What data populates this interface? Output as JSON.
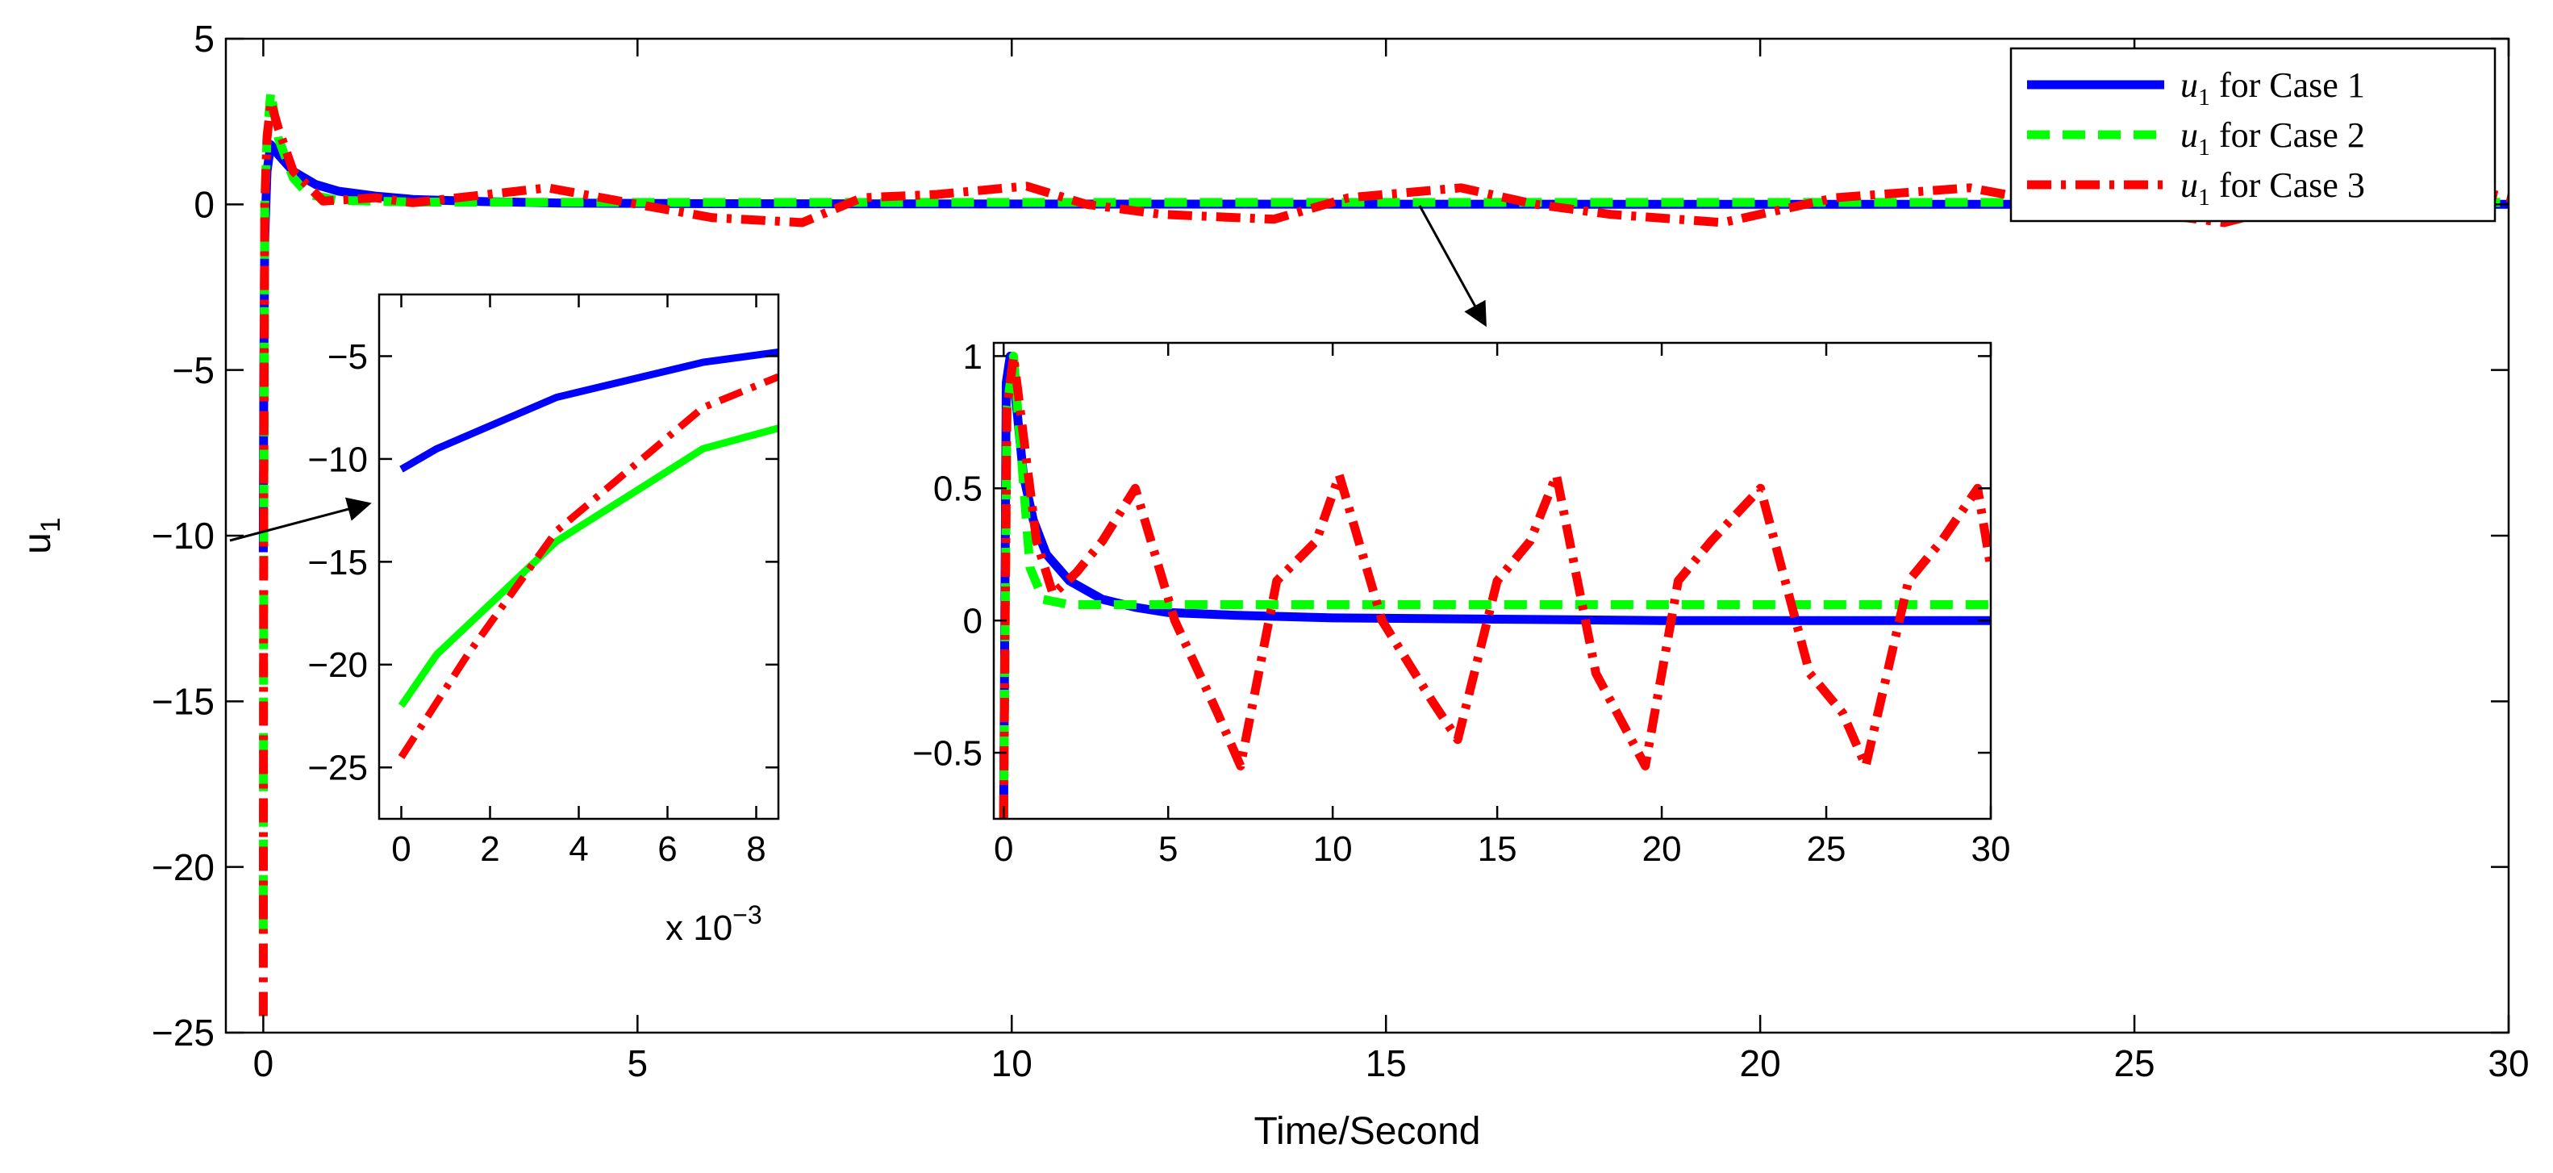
{
  "chart_data": [
    {
      "id": "main",
      "type": "line",
      "title": "",
      "xlabel": "Time/Second",
      "ylabel": "u",
      "ylabel_sub": "1",
      "xlim": [
        -0.5,
        30
      ],
      "ylim": [
        -25,
        5
      ],
      "xticks": [
        0,
        5,
        10,
        15,
        20,
        25,
        30
      ],
      "yticks": [
        -25,
        -20,
        -15,
        -10,
        -5,
        0,
        5
      ],
      "xtick_labels": [
        "0",
        "5",
        "10",
        "15",
        "20",
        "25",
        "30"
      ],
      "ytick_labels": [
        "−25",
        "−20",
        "−15",
        "−10",
        "−5",
        "0",
        "5"
      ],
      "legend": {
        "placement": "top-right",
        "entries": [
          {
            "var": "u",
            "sub": "1",
            "text": " for Case 1"
          },
          {
            "var": "u",
            "sub": "1",
            "text": " for Case 2"
          },
          {
            "var": "u",
            "sub": "1",
            "text": " for Case 3"
          }
        ]
      },
      "series": [
        {
          "name": "u1 for Case 1",
          "color": "#0000ff",
          "dash": "solid",
          "x": [
            0,
            0.001,
            0.004,
            0.008,
            0.02,
            0.05,
            0.1,
            0.2,
            0.4,
            0.7,
            1,
            1.5,
            2,
            3,
            4,
            6,
            10,
            15,
            20,
            25,
            30
          ],
          "y": [
            -10.5,
            -9.5,
            -7,
            -5,
            -1,
            1,
            1.8,
            1.5,
            1.0,
            0.6,
            0.4,
            0.25,
            0.15,
            0.08,
            0.04,
            0.02,
            0.01,
            0.005,
            0.0,
            0.0,
            0.0
          ]
        },
        {
          "name": "u1 for Case 2",
          "color": "#00ff00",
          "dash": "dashed",
          "x": [
            0,
            0.001,
            0.004,
            0.008,
            0.02,
            0.05,
            0.1,
            0.2,
            0.4,
            0.6,
            1,
            2,
            5,
            10,
            15,
            20,
            25,
            30
          ],
          "y": [
            -22,
            -20,
            -14,
            -9,
            0,
            2,
            3.4,
            2.0,
            0.8,
            0.3,
            0.12,
            0.07,
            0.06,
            0.06,
            0.06,
            0.06,
            0.06,
            0.06
          ]
        },
        {
          "name": "u1 for Case 3",
          "color": "#ff0000",
          "dash": "dashdot",
          "x": [
            0,
            0.001,
            0.004,
            0.008,
            0.02,
            0.05,
            0.1,
            0.2,
            0.4,
            0.8,
            1.5,
            2,
            3,
            3.8,
            5,
            6,
            7.2,
            8,
            9,
            10.2,
            11,
            12,
            13.5,
            14.5,
            16,
            17,
            18,
            19.5,
            21,
            22.8,
            24,
            25.5,
            26.2,
            27.5,
            29,
            29.8,
            30
          ],
          "y": [
            -24.5,
            -20,
            -12,
            -8,
            0,
            2,
            3.1,
            2.3,
            1.0,
            0.1,
            0.2,
            0.05,
            0.3,
            0.5,
            0.0,
            -0.4,
            -0.55,
            0.2,
            0.3,
            0.55,
            0.0,
            -0.3,
            -0.45,
            0.2,
            0.5,
            0.0,
            -0.3,
            -0.55,
            0.2,
            0.5,
            0.0,
            -0.35,
            -0.55,
            0.2,
            0.5,
            0.3,
            0.2
          ]
        }
      ]
    },
    {
      "id": "inset-left",
      "type": "line",
      "xlim": [
        -0.5,
        8.5
      ],
      "ylim": [
        -27.5,
        -2
      ],
      "xticks": [
        0,
        2,
        4,
        6,
        8
      ],
      "yticks": [
        -25,
        -20,
        -15,
        -10,
        -5
      ],
      "xtick_labels": [
        "0",
        "2",
        "4",
        "6",
        "8"
      ],
      "ytick_labels": [
        "−25",
        "−20",
        "−15",
        "−10",
        "−5"
      ],
      "x_multiplier_label": "x 10",
      "x_multiplier_exp": "−3",
      "series": [
        {
          "name": "Case 1",
          "color": "#0000ff",
          "dash": "solid",
          "x": [
            0,
            0.8,
            3.5,
            6.8,
            8.5
          ],
          "y": [
            -10.5,
            -9.5,
            -7,
            -5.3,
            -4.8
          ]
        },
        {
          "name": "Case 2",
          "color": "#00ff00",
          "dash": "solid",
          "x": [
            0,
            0.8,
            3.5,
            6.8,
            8.5
          ],
          "y": [
            -22,
            -19.5,
            -14,
            -9.5,
            -8.5
          ]
        },
        {
          "name": "Case 3",
          "color": "#ff0000",
          "dash": "dashdot",
          "x": [
            0,
            1.5,
            3.5,
            6.8,
            8.5
          ],
          "y": [
            -24.5,
            -19.5,
            -13.5,
            -7.5,
            -6
          ]
        }
      ]
    },
    {
      "id": "inset-right",
      "type": "line",
      "xlim": [
        -0.3,
        30
      ],
      "ylim": [
        -0.75,
        1.05
      ],
      "xticks": [
        0,
        5,
        10,
        15,
        20,
        25,
        30
      ],
      "yticks": [
        -0.5,
        0,
        0.5,
        1
      ],
      "xtick_labels": [
        "0",
        "5",
        "10",
        "15",
        "20",
        "25",
        "30"
      ],
      "ytick_labels": [
        "−0.5",
        "0",
        "0.5",
        "1"
      ],
      "series": [
        {
          "name": "Case 1",
          "color": "#0000ff",
          "dash": "solid",
          "x": [
            0,
            0.08,
            0.2,
            0.4,
            0.6,
            0.9,
            1.3,
            2,
            3,
            4,
            5,
            7,
            10,
            15,
            20,
            25,
            30
          ],
          "y": [
            -0.75,
            0.9,
            1.0,
            0.8,
            0.55,
            0.38,
            0.25,
            0.15,
            0.08,
            0.05,
            0.03,
            0.02,
            0.01,
            0.005,
            0.0,
            0.0,
            0.0
          ]
        },
        {
          "name": "Case 2",
          "color": "#00ff00",
          "dash": "dashed",
          "x": [
            0,
            0.1,
            0.3,
            0.55,
            0.8,
            1.2,
            2,
            5,
            10,
            15,
            20,
            25,
            30
          ],
          "y": [
            -0.75,
            0.8,
            1.0,
            0.6,
            0.2,
            0.08,
            0.06,
            0.06,
            0.06,
            0.06,
            0.06,
            0.06,
            0.06
          ]
        },
        {
          "name": "Case 3",
          "color": "#ff0000",
          "dash": "dashdot",
          "x": [
            0,
            0.1,
            0.3,
            0.6,
            1.0,
            1.5,
            2.2,
            3.0,
            4.0,
            5.2,
            6.5,
            7.2,
            8.3,
            9.5,
            10.2,
            11.5,
            13.0,
            13.8,
            15.0,
            16.0,
            16.8,
            18.0,
            19.5,
            20.5,
            21.5,
            23.0,
            24.5,
            25.5,
            26.2,
            27.5,
            28.5,
            29.6,
            30
          ],
          "y": [
            -0.75,
            0.8,
            1.0,
            0.7,
            0.3,
            0.1,
            0.18,
            0.3,
            0.5,
            0.0,
            -0.35,
            -0.55,
            0.15,
            0.3,
            0.55,
            0.0,
            -0.3,
            -0.45,
            0.15,
            0.3,
            0.55,
            -0.2,
            -0.55,
            0.15,
            0.3,
            0.5,
            -0.2,
            -0.35,
            -0.55,
            0.15,
            0.3,
            0.5,
            0.2
          ]
        }
      ]
    }
  ]
}
